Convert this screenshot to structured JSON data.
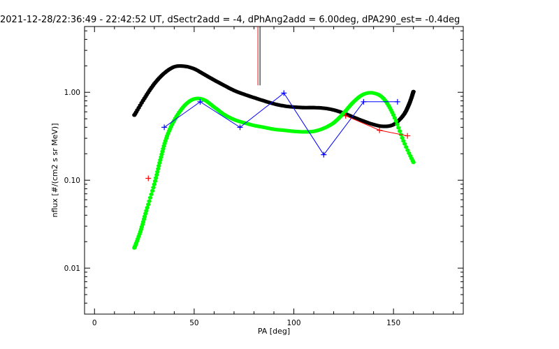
{
  "chart_data": {
    "type": "line",
    "title": "2021-12-28/22:36:49 - 22:42:52 UT, dSectr2add = -4, dPhAng2add = 6.00deg, dPA290_est=  -0.4deg",
    "xlabel": "PA [deg]",
    "ylabel": "nflux [#/(cm2 s sr MeV)]",
    "xlim": [
      -5,
      185
    ],
    "ylim": [
      0.003,
      5.6
    ],
    "yscale": "log",
    "grid": false,
    "x_ticks": [
      {
        "value": 0,
        "label": "0"
      },
      {
        "value": 50,
        "label": "50"
      },
      {
        "value": 100,
        "label": "100"
      },
      {
        "value": 150,
        "label": "150"
      }
    ],
    "y_ticks": [
      {
        "value": 0.01,
        "label": "0.01"
      },
      {
        "value": 0.1,
        "label": "0.10"
      },
      {
        "value": 1.0,
        "label": "1.00"
      }
    ],
    "marker_line": {
      "x": 82.5,
      "y_from": 1.2,
      "y_to": 5.6,
      "colors": [
        "#ff0000",
        "#000000"
      ]
    },
    "series": [
      {
        "style": "dots",
        "color": "#000000",
        "x": [
          20,
          25,
          30,
          35,
          40,
          45,
          50,
          55,
          60,
          65,
          70,
          75,
          80,
          85,
          90,
          95,
          100,
          105,
          110,
          115,
          120,
          125,
          130,
          135,
          140,
          145,
          150,
          155,
          158,
          160
        ],
        "y": [
          0.55,
          0.85,
          1.25,
          1.65,
          1.95,
          1.98,
          1.85,
          1.6,
          1.38,
          1.2,
          1.05,
          0.95,
          0.87,
          0.8,
          0.74,
          0.7,
          0.68,
          0.67,
          0.67,
          0.66,
          0.63,
          0.58,
          0.52,
          0.47,
          0.43,
          0.41,
          0.43,
          0.55,
          0.75,
          1.02
        ]
      },
      {
        "style": "dots",
        "color": "#00ff00",
        "x": [
          20,
          23,
          26,
          30,
          33,
          36,
          40,
          45,
          50,
          55,
          60,
          65,
          70,
          75,
          80,
          85,
          90,
          95,
          100,
          105,
          110,
          115,
          120,
          125,
          130,
          135,
          140,
          145,
          150,
          155,
          160
        ],
        "y": [
          0.017,
          0.026,
          0.045,
          0.09,
          0.17,
          0.3,
          0.48,
          0.7,
          0.84,
          0.82,
          0.68,
          0.56,
          0.49,
          0.45,
          0.42,
          0.4,
          0.38,
          0.37,
          0.36,
          0.355,
          0.36,
          0.39,
          0.45,
          0.58,
          0.78,
          0.95,
          0.98,
          0.85,
          0.55,
          0.28,
          0.16
        ]
      },
      {
        "style": "line-plus",
        "color": "#0000ff",
        "x": [
          35,
          53,
          73,
          95,
          115,
          135,
          152
        ],
        "y": [
          0.4,
          0.78,
          0.4,
          0.98,
          0.195,
          0.78,
          0.78
        ]
      },
      {
        "style": "line-plus",
        "color": "#ff0000",
        "x": [
          27,
          126,
          143,
          157
        ],
        "y": [
          0.105,
          0.54,
          0.37,
          0.32
        ],
        "connect_from_index": 1
      }
    ]
  }
}
